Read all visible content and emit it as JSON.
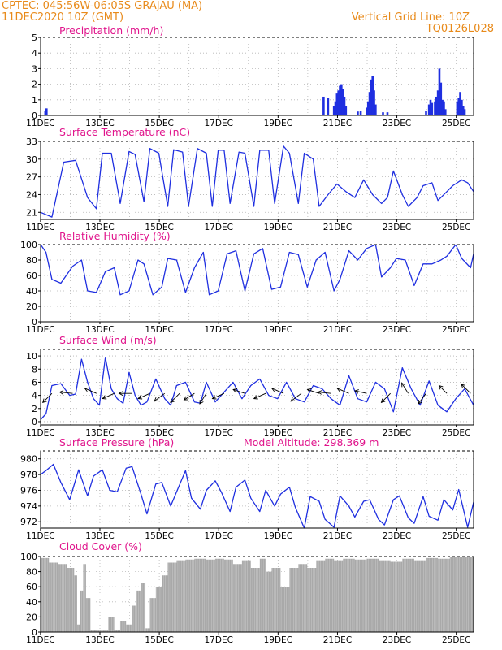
{
  "header": {
    "line1": "CPTEC:   045:56W-06:05S   GRAJAU (MA)",
    "line2": "11DEC2020 10Z (GMT)",
    "right1": "Vertical Grid Line: 10Z",
    "right2": "TQ0126L028",
    "title_color": "#e88a1a"
  },
  "colors": {
    "series": "#1f2fe0",
    "panel_title": "#e0158c",
    "cloud": "#a9a9a9"
  },
  "x_ticks": [
    "11DEC",
    "13DEC",
    "15DEC",
    "17DEC",
    "19DEC",
    "21DEC",
    "23DEC",
    "25DEC"
  ],
  "chart_data": [
    {
      "type": "bar",
      "title": "Precipitation (mm/h)",
      "x_start_day": 11.4,
      "x_end_day": 26.0,
      "ylim": [
        0,
        5
      ],
      "yticks": [
        0,
        1,
        2,
        3,
        4,
        5
      ],
      "values": [
        [
          11.58,
          0.3
        ],
        [
          11.62,
          0.45
        ],
        [
          20.95,
          1.2
        ],
        [
          21.1,
          1.1
        ],
        [
          21.3,
          0.6
        ],
        [
          21.35,
          0.9
        ],
        [
          21.4,
          1.4
        ],
        [
          21.45,
          1.6
        ],
        [
          21.5,
          1.9
        ],
        [
          21.55,
          2.0
        ],
        [
          21.6,
          1.7
        ],
        [
          21.65,
          1.2
        ],
        [
          21.7,
          0.6
        ],
        [
          22.1,
          0.25
        ],
        [
          22.2,
          0.3
        ],
        [
          22.4,
          0.5
        ],
        [
          22.45,
          0.9
        ],
        [
          22.5,
          1.5
        ],
        [
          22.55,
          2.3
        ],
        [
          22.6,
          2.5
        ],
        [
          22.65,
          1.6
        ],
        [
          22.7,
          0.7
        ],
        [
          22.95,
          0.2
        ],
        [
          23.1,
          0.2
        ],
        [
          24.4,
          0.3
        ],
        [
          24.5,
          0.7
        ],
        [
          24.55,
          1.0
        ],
        [
          24.6,
          0.8
        ],
        [
          24.7,
          0.9
        ],
        [
          24.75,
          1.2
        ],
        [
          24.8,
          1.6
        ],
        [
          24.85,
          3.0
        ],
        [
          24.9,
          2.1
        ],
        [
          24.95,
          1.0
        ],
        [
          25.0,
          0.9
        ],
        [
          25.05,
          0.4
        ],
        [
          25.45,
          0.9
        ],
        [
          25.5,
          1.1
        ],
        [
          25.55,
          1.5
        ],
        [
          25.6,
          1.0
        ],
        [
          25.65,
          0.6
        ],
        [
          25.7,
          0.4
        ]
      ]
    },
    {
      "type": "line",
      "title": "Surface Temperature (nC)",
      "ylim": [
        19.8,
        33
      ],
      "yticks": [
        21,
        24,
        27,
        30,
        33
      ],
      "x": [
        11.42,
        11.8,
        12.2,
        12.6,
        13.0,
        13.3,
        13.5,
        13.8,
        14.1,
        14.4,
        14.6,
        14.9,
        15.1,
        15.4,
        15.7,
        15.9,
        16.2,
        16.4,
        16.7,
        17.0,
        17.2,
        17.4,
        17.6,
        17.8,
        18.1,
        18.3,
        18.6,
        18.8,
        19.1,
        19.3,
        19.6,
        19.8,
        20.1,
        20.3,
        20.6,
        20.8,
        21.1,
        21.4,
        21.7,
        22.0,
        22.3,
        22.6,
        22.9,
        23.1,
        23.3,
        23.6,
        23.8,
        24.1,
        24.3,
        24.6,
        24.8,
        25.1,
        25.3,
        25.6,
        25.8,
        26.0
      ],
      "y": [
        21.0,
        20.2,
        29.5,
        29.8,
        23.5,
        21.6,
        31.0,
        31.0,
        22.5,
        31.3,
        30.8,
        22.8,
        31.8,
        31.0,
        22.0,
        31.6,
        31.2,
        22.0,
        31.8,
        31.0,
        22.0,
        31.5,
        31.5,
        22.5,
        31.2,
        31.0,
        22.0,
        31.5,
        31.5,
        22.5,
        32.2,
        31.0,
        22.5,
        31.0,
        30.0,
        22.0,
        24.0,
        25.8,
        24.5,
        23.5,
        26.5,
        24.0,
        22.5,
        23.5,
        28.0,
        24.0,
        22.0,
        23.5,
        25.5,
        26.0,
        23.0,
        24.5,
        25.5,
        26.5,
        26.0,
        24.5
      ]
    },
    {
      "type": "line",
      "title": "Relative Humidity (%)",
      "ylim": [
        0,
        100
      ],
      "yticks": [
        0,
        20,
        40,
        60,
        80,
        100
      ],
      "x": [
        11.42,
        11.6,
        11.8,
        12.1,
        12.5,
        12.8,
        13.0,
        13.3,
        13.6,
        13.9,
        14.1,
        14.4,
        14.7,
        14.9,
        15.2,
        15.5,
        15.7,
        16.0,
        16.3,
        16.6,
        16.9,
        17.1,
        17.4,
        17.7,
        18.0,
        18.3,
        18.6,
        18.9,
        19.2,
        19.5,
        19.8,
        20.1,
        20.4,
        20.7,
        21.0,
        21.3,
        21.5,
        21.8,
        22.1,
        22.4,
        22.7,
        22.9,
        23.2,
        23.4,
        23.7,
        24.0,
        24.3,
        24.6,
        24.9,
        25.1,
        25.4,
        25.6,
        25.9,
        26.0
      ],
      "y": [
        100,
        90,
        55,
        50,
        72,
        80,
        40,
        38,
        65,
        70,
        35,
        40,
        80,
        75,
        35,
        45,
        82,
        80,
        38,
        70,
        90,
        35,
        40,
        88,
        92,
        40,
        88,
        95,
        42,
        45,
        90,
        87,
        45,
        80,
        90,
        40,
        55,
        92,
        80,
        95,
        100,
        58,
        70,
        82,
        80,
        47,
        75,
        75,
        80,
        85,
        100,
        82,
        70,
        88
      ]
    },
    {
      "type": "line",
      "title": "Surface Wind (m/s)",
      "ylim": [
        -0.5,
        11
      ],
      "yticks": [
        0,
        2,
        4,
        6,
        8,
        10
      ],
      "x": [
        11.42,
        11.6,
        11.8,
        12.1,
        12.4,
        12.6,
        12.8,
        13.0,
        13.2,
        13.4,
        13.6,
        13.8,
        14.0,
        14.2,
        14.4,
        14.6,
        14.8,
        15.0,
        15.3,
        15.6,
        15.8,
        16.0,
        16.3,
        16.6,
        16.8,
        17.0,
        17.3,
        17.6,
        17.9,
        18.2,
        18.5,
        18.8,
        19.1,
        19.4,
        19.7,
        20.0,
        20.3,
        20.6,
        20.9,
        21.2,
        21.5,
        21.8,
        22.1,
        22.4,
        22.7,
        23.0,
        23.3,
        23.6,
        23.9,
        24.2,
        24.5,
        24.8,
        25.1,
        25.4,
        25.7,
        26.0
      ],
      "y": [
        0.3,
        1.2,
        5.5,
        5.8,
        4.0,
        4.2,
        9.5,
        6.0,
        3.5,
        2.5,
        9.8,
        5.0,
        3.5,
        2.8,
        7.5,
        4.0,
        2.5,
        3.0,
        6.5,
        3.5,
        2.5,
        5.5,
        6.0,
        3.0,
        2.8,
        6.0,
        3.0,
        4.5,
        6.0,
        3.5,
        5.5,
        6.5,
        4.0,
        3.5,
        6.0,
        3.5,
        3.0,
        5.5,
        5.0,
        3.5,
        2.5,
        7.0,
        3.5,
        3.0,
        6.0,
        5.0,
        1.5,
        8.2,
        5.0,
        2.5,
        6.2,
        2.5,
        1.5,
        3.5,
        5.0,
        2.5
      ],
      "arrows": [
        {
          "day": 11.8,
          "dx": -0.7,
          "dy": -0.7
        },
        {
          "day": 12.5,
          "dx": -1.0,
          "dy": 0.1
        },
        {
          "day": 13.3,
          "dx": -0.9,
          "dy": 0.4
        },
        {
          "day": 13.9,
          "dx": -0.9,
          "dy": -0.4
        },
        {
          "day": 14.5,
          "dx": -1.0,
          "dy": 0.0
        },
        {
          "day": 15.1,
          "dx": -0.9,
          "dy": -0.4
        },
        {
          "day": 15.6,
          "dx": -0.8,
          "dy": -0.6
        },
        {
          "day": 16.1,
          "dx": -0.7,
          "dy": -0.7
        },
        {
          "day": 16.6,
          "dx": -0.8,
          "dy": -0.5
        },
        {
          "day": 17.0,
          "dx": -0.5,
          "dy": -0.8
        },
        {
          "day": 17.6,
          "dx": -0.9,
          "dy": -0.4
        },
        {
          "day": 18.3,
          "dx": -0.9,
          "dy": 0.3
        },
        {
          "day": 19.0,
          "dx": -0.9,
          "dy": -0.4
        },
        {
          "day": 19.6,
          "dx": -0.9,
          "dy": 0.4
        },
        {
          "day": 20.2,
          "dx": -0.8,
          "dy": -0.6
        },
        {
          "day": 20.8,
          "dx": -0.9,
          "dy": 0.3
        },
        {
          "day": 21.2,
          "dx": -1.0,
          "dy": 0.1
        },
        {
          "day": 21.8,
          "dx": -0.9,
          "dy": 0.4
        },
        {
          "day": 22.4,
          "dx": -0.9,
          "dy": 0.2
        },
        {
          "day": 23.2,
          "dx": -0.7,
          "dy": -0.7
        },
        {
          "day": 23.8,
          "dx": -0.5,
          "dy": 0.8
        },
        {
          "day": 24.4,
          "dx": -0.6,
          "dy": -0.8
        },
        {
          "day": 25.1,
          "dx": -0.6,
          "dy": 0.6
        },
        {
          "day": 25.9,
          "dx": -0.7,
          "dy": 0.7
        }
      ]
    },
    {
      "type": "line",
      "title": "Surface Pressure (hPa)",
      "annotation": "Model Altitude: 298.369  m",
      "ylim": [
        971.2,
        981
      ],
      "yticks": [
        972,
        974,
        976,
        978,
        980
      ],
      "x": [
        11.42,
        11.6,
        11.85,
        12.1,
        12.4,
        12.7,
        13.0,
        13.2,
        13.5,
        13.75,
        14.0,
        14.3,
        14.5,
        14.8,
        15.0,
        15.3,
        15.5,
        15.8,
        16.0,
        16.3,
        16.5,
        16.8,
        17.0,
        17.3,
        17.5,
        17.8,
        18.0,
        18.3,
        18.5,
        18.8,
        19.0,
        19.3,
        19.5,
        19.8,
        20.0,
        20.3,
        20.5,
        20.8,
        21.0,
        21.3,
        21.5,
        21.8,
        22.0,
        22.3,
        22.5,
        22.8,
        23.0,
        23.3,
        23.5,
        23.8,
        24.0,
        24.3,
        24.5,
        24.8,
        25.0,
        25.3,
        25.5,
        25.8,
        26.0
      ],
      "y": [
        978,
        978.5,
        979.3,
        977,
        974.8,
        978.6,
        975.3,
        977.8,
        978.6,
        976,
        975.8,
        978.8,
        979,
        975.5,
        973,
        976.8,
        977,
        974,
        975.8,
        978.5,
        975,
        973.6,
        976,
        977.2,
        975.8,
        973.3,
        976.4,
        977.3,
        975,
        973.3,
        976,
        974,
        975.5,
        976.4,
        973.8,
        971.2,
        975.2,
        974.6,
        972.3,
        971.3,
        975.3,
        974,
        972.6,
        974.6,
        974.8,
        972.3,
        971.6,
        974.8,
        975.3,
        972.5,
        971.8,
        975.2,
        972.7,
        972.2,
        974.8,
        973.5,
        976.1,
        971.3,
        974.5
      ]
    },
    {
      "type": "bar",
      "title": "Cloud Cover (%)",
      "ylim": [
        0,
        100
      ],
      "yticks": [
        0,
        20,
        40,
        60,
        80,
        100
      ],
      "x": [
        11.42,
        11.7,
        12.0,
        12.3,
        12.55,
        12.65,
        12.75,
        12.85,
        12.95,
        13.1,
        13.3,
        13.5,
        13.7,
        13.9,
        14.1,
        14.3,
        14.5,
        14.65,
        14.8,
        14.95,
        15.1,
        15.3,
        15.5,
        15.7,
        16.0,
        16.3,
        16.6,
        17.0,
        17.3,
        17.6,
        17.9,
        18.2,
        18.5,
        18.8,
        19.0,
        19.2,
        19.5,
        19.8,
        20.1,
        20.4,
        20.7,
        21.0,
        21.3,
        21.6,
        22.0,
        22.4,
        22.8,
        23.2,
        23.6,
        24.0,
        24.4,
        24.8,
        25.2,
        25.6,
        26.0
      ],
      "y": [
        98,
        92,
        90,
        85,
        75,
        10,
        55,
        90,
        45,
        3,
        2,
        2,
        20,
        3,
        15,
        10,
        35,
        55,
        65,
        5,
        45,
        60,
        75,
        92,
        95,
        96,
        97,
        96,
        97,
        96,
        90,
        95,
        85,
        97,
        80,
        85,
        60,
        85,
        90,
        85,
        95,
        97,
        95,
        97,
        96,
        97,
        95,
        93,
        97,
        95,
        98,
        97,
        99,
        100,
        99
      ]
    }
  ]
}
